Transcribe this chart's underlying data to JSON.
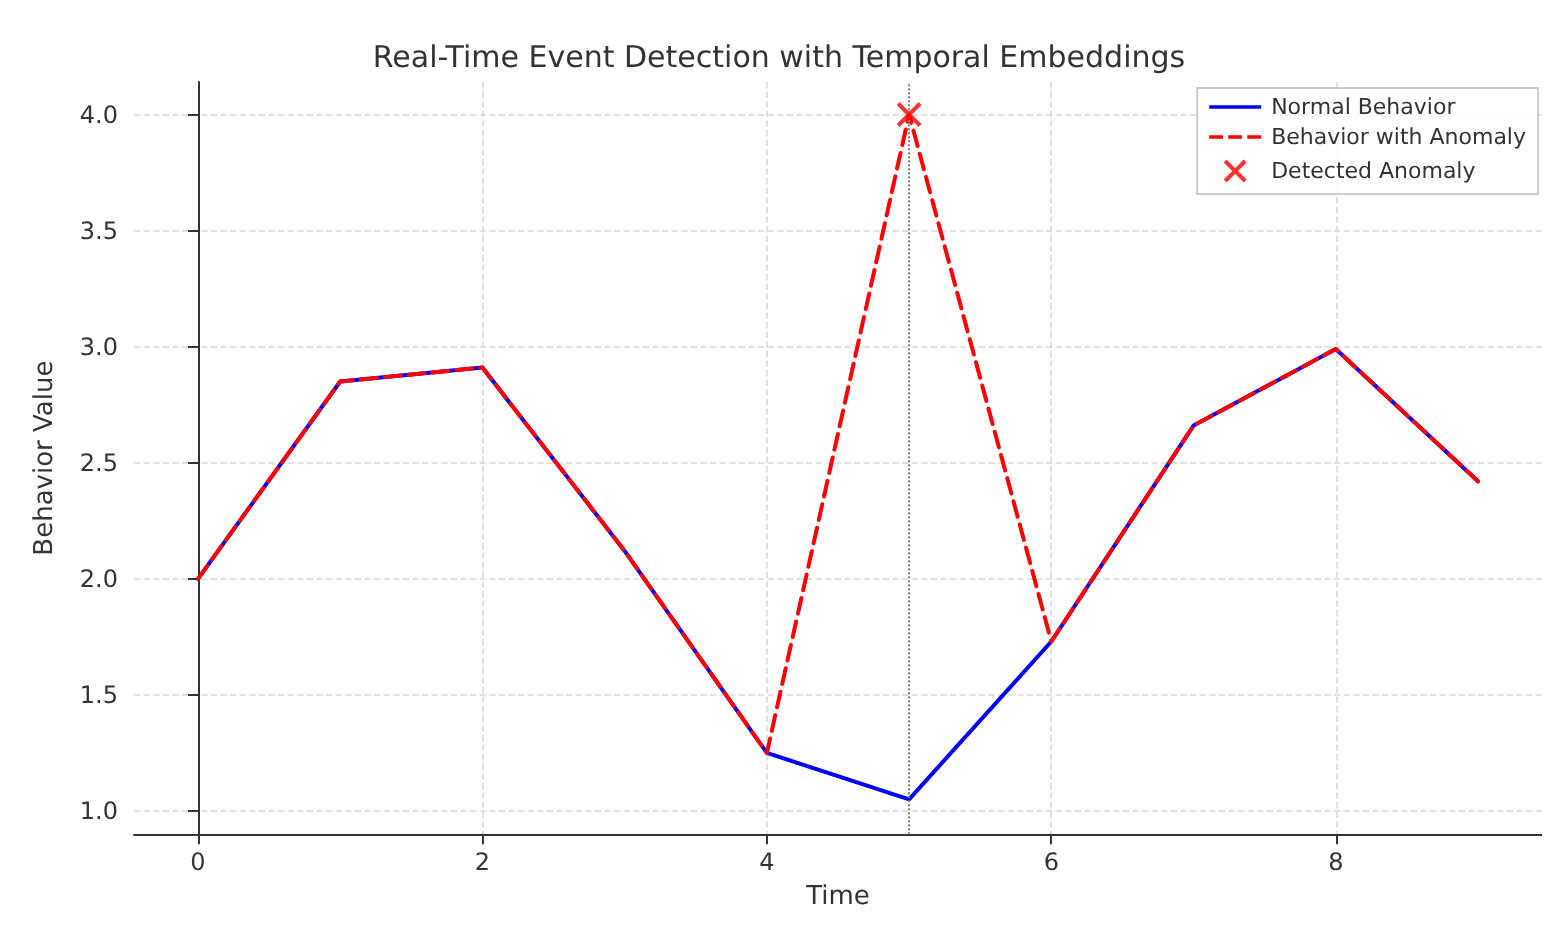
{
  "chart_data": {
    "type": "line",
    "title": "Real-Time Event Detection with Temporal Embeddings",
    "xlabel": "Time",
    "ylabel": "Behavior Value",
    "x": [
      0,
      1,
      2,
      3,
      4,
      5,
      6,
      7,
      8,
      9
    ],
    "series": [
      {
        "name": "Normal Behavior",
        "color": "#0000ff",
        "line_style": "solid",
        "values": [
          2.0,
          2.85,
          2.91,
          2.12,
          1.25,
          1.05,
          1.73,
          2.66,
          2.99,
          2.42
        ]
      },
      {
        "name": "Behavior with Anomaly",
        "color": "#ff0000",
        "line_style": "dashed",
        "values": [
          2.0,
          2.85,
          2.91,
          2.12,
          1.25,
          4.0,
          1.73,
          2.66,
          2.99,
          2.42
        ]
      },
      {
        "name": "Detected Anomaly",
        "type": "scatter",
        "marker": "cross",
        "color": "#ff0000",
        "x": [
          5
        ],
        "values": [
          4.0
        ]
      }
    ],
    "xlim": [
      -0.45,
      9.45
    ],
    "xticks": [
      0,
      2,
      4,
      6,
      8
    ],
    "ylim": [
      0.9,
      4.14
    ],
    "yticks": [
      {
        "value": 1,
        "label": "1.0"
      },
      1.5,
      {
        "value": 2,
        "label": "2.0"
      },
      2.5,
      {
        "value": 3,
        "label": "3.0"
      },
      3.5,
      {
        "value": 4,
        "label": "4.0"
      }
    ],
    "ref_lines": [
      {
        "axis": "x",
        "value": 5,
        "color": "#808080",
        "line_style": "dotted"
      }
    ],
    "grid": true,
    "legend": "top right"
  }
}
